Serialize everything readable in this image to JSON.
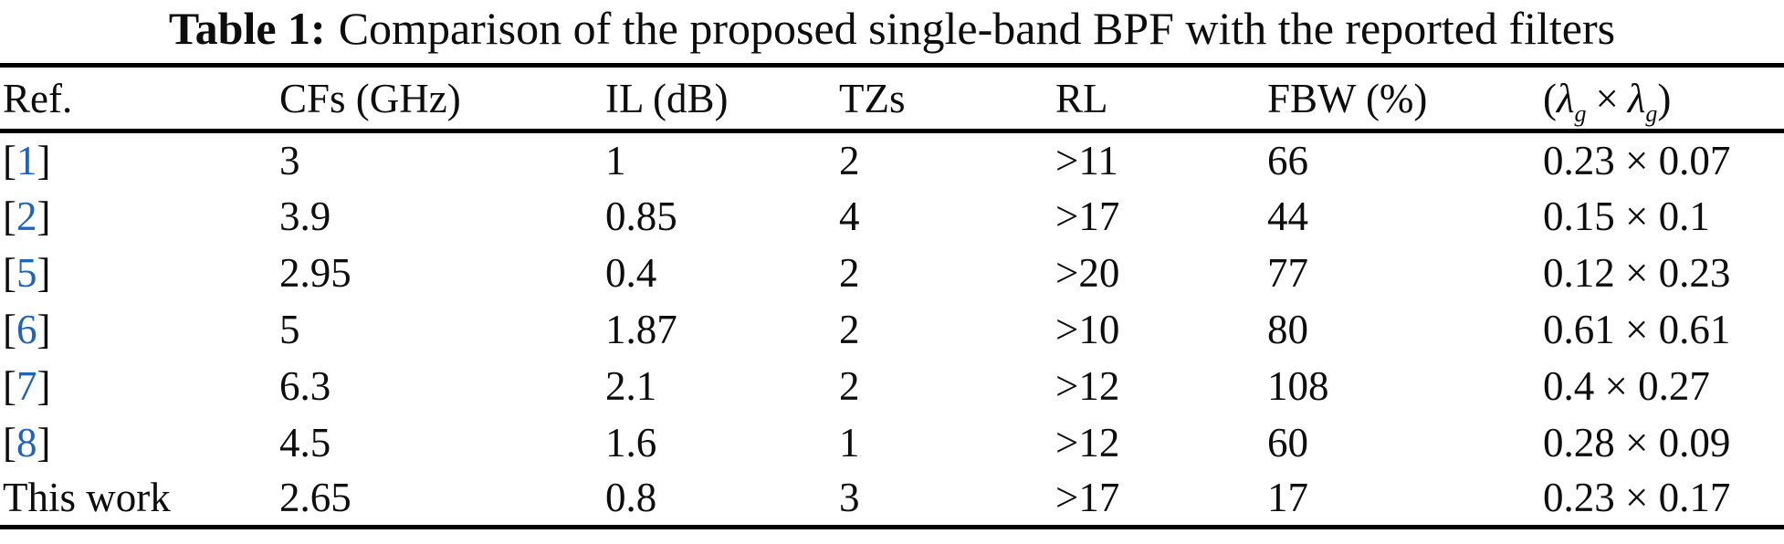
{
  "title": {
    "label": "Table 1:",
    "text": "Comparison of the proposed single-band BPF with the reported filters"
  },
  "colors": {
    "link_blue": "#1c64bd",
    "text": "#0d0d0d",
    "rule": "#000000"
  },
  "table": {
    "columns": [
      "Ref.",
      "CFs (GHz)",
      "IL (dB)",
      "TZs",
      "RL",
      "FBW (%)"
    ],
    "size_header": {
      "open": "(",
      "lambda": "λ",
      "sub": "g",
      "times": "×",
      "close": ")"
    },
    "bracket_open": "[",
    "bracket_close": "]",
    "rows": [
      {
        "ref": "1",
        "ref_is_link": true,
        "cells": [
          "3",
          "1",
          "2",
          ">11",
          "66",
          "0.23 × 0.07"
        ]
      },
      {
        "ref": "2",
        "ref_is_link": true,
        "cells": [
          "3.9",
          "0.85",
          "4",
          ">17",
          "44",
          "0.15 × 0.1"
        ]
      },
      {
        "ref": "5",
        "ref_is_link": true,
        "cells": [
          "2.95",
          "0.4",
          "2",
          ">20",
          "77",
          "0.12 × 0.23"
        ]
      },
      {
        "ref": "6",
        "ref_is_link": true,
        "cells": [
          "5",
          "1.87",
          "2",
          ">10",
          "80",
          "0.61 × 0.61"
        ]
      },
      {
        "ref": "7",
        "ref_is_link": true,
        "cells": [
          "6.3",
          "2.1",
          "2",
          ">12",
          "108",
          "0.4 × 0.27"
        ]
      },
      {
        "ref": "8",
        "ref_is_link": true,
        "cells": [
          "4.5",
          "1.6",
          "1",
          ">12",
          "60",
          "0.28 × 0.09"
        ]
      },
      {
        "ref": "This work",
        "ref_is_link": false,
        "cells": [
          "2.65",
          "0.8",
          "3",
          ">17",
          "17",
          "0.23 × 0.17"
        ]
      }
    ]
  }
}
